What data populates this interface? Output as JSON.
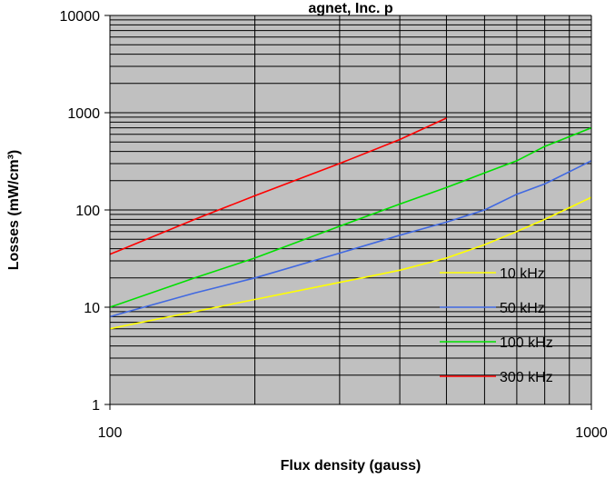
{
  "chart_data": {
    "type": "line",
    "title": "agnet, Inc. p",
    "xlabel": "Flux density (gauss)",
    "ylabel": "Losses (mW/cm³)",
    "x_scale": "log",
    "y_scale": "log",
    "xlim": [
      100,
      1000
    ],
    "ylim": [
      1,
      10000
    ],
    "x_ticks": [
      100,
      1000
    ],
    "x_tick_labels": [
      "100",
      "1000"
    ],
    "y_ticks": [
      1,
      10,
      100,
      1000,
      10000
    ],
    "y_tick_labels": [
      "1",
      "10",
      "100",
      "1000",
      "10000"
    ],
    "grid": true,
    "legend_position": "bottom-right",
    "series": [
      {
        "name": "10 kHz",
        "color": "#ffff00",
        "x": [
          100,
          150,
          200,
          300,
          400,
          500,
          600,
          700,
          800,
          1000
        ],
        "y": [
          6,
          9,
          12,
          18,
          24,
          32,
          44,
          60,
          80,
          135
        ]
      },
      {
        "name": "50 kHz",
        "color": "#4169e1",
        "x": [
          100,
          150,
          200,
          300,
          400,
          500,
          600,
          700,
          800,
          1000
        ],
        "y": [
          8,
          14,
          20,
          36,
          55,
          75,
          100,
          145,
          185,
          320
        ]
      },
      {
        "name": "100 kHz",
        "color": "#00e000",
        "x": [
          100,
          150,
          200,
          300,
          400,
          500,
          600,
          700,
          800,
          1000
        ],
        "y": [
          10,
          20,
          32,
          68,
          115,
          170,
          240,
          320,
          450,
          700
        ]
      },
      {
        "name": "300 kHz",
        "color": "#ff0000",
        "x": [
          100,
          150,
          200,
          300,
          400,
          500
        ],
        "y": [
          35,
          80,
          140,
          300,
          530,
          880
        ]
      }
    ]
  }
}
